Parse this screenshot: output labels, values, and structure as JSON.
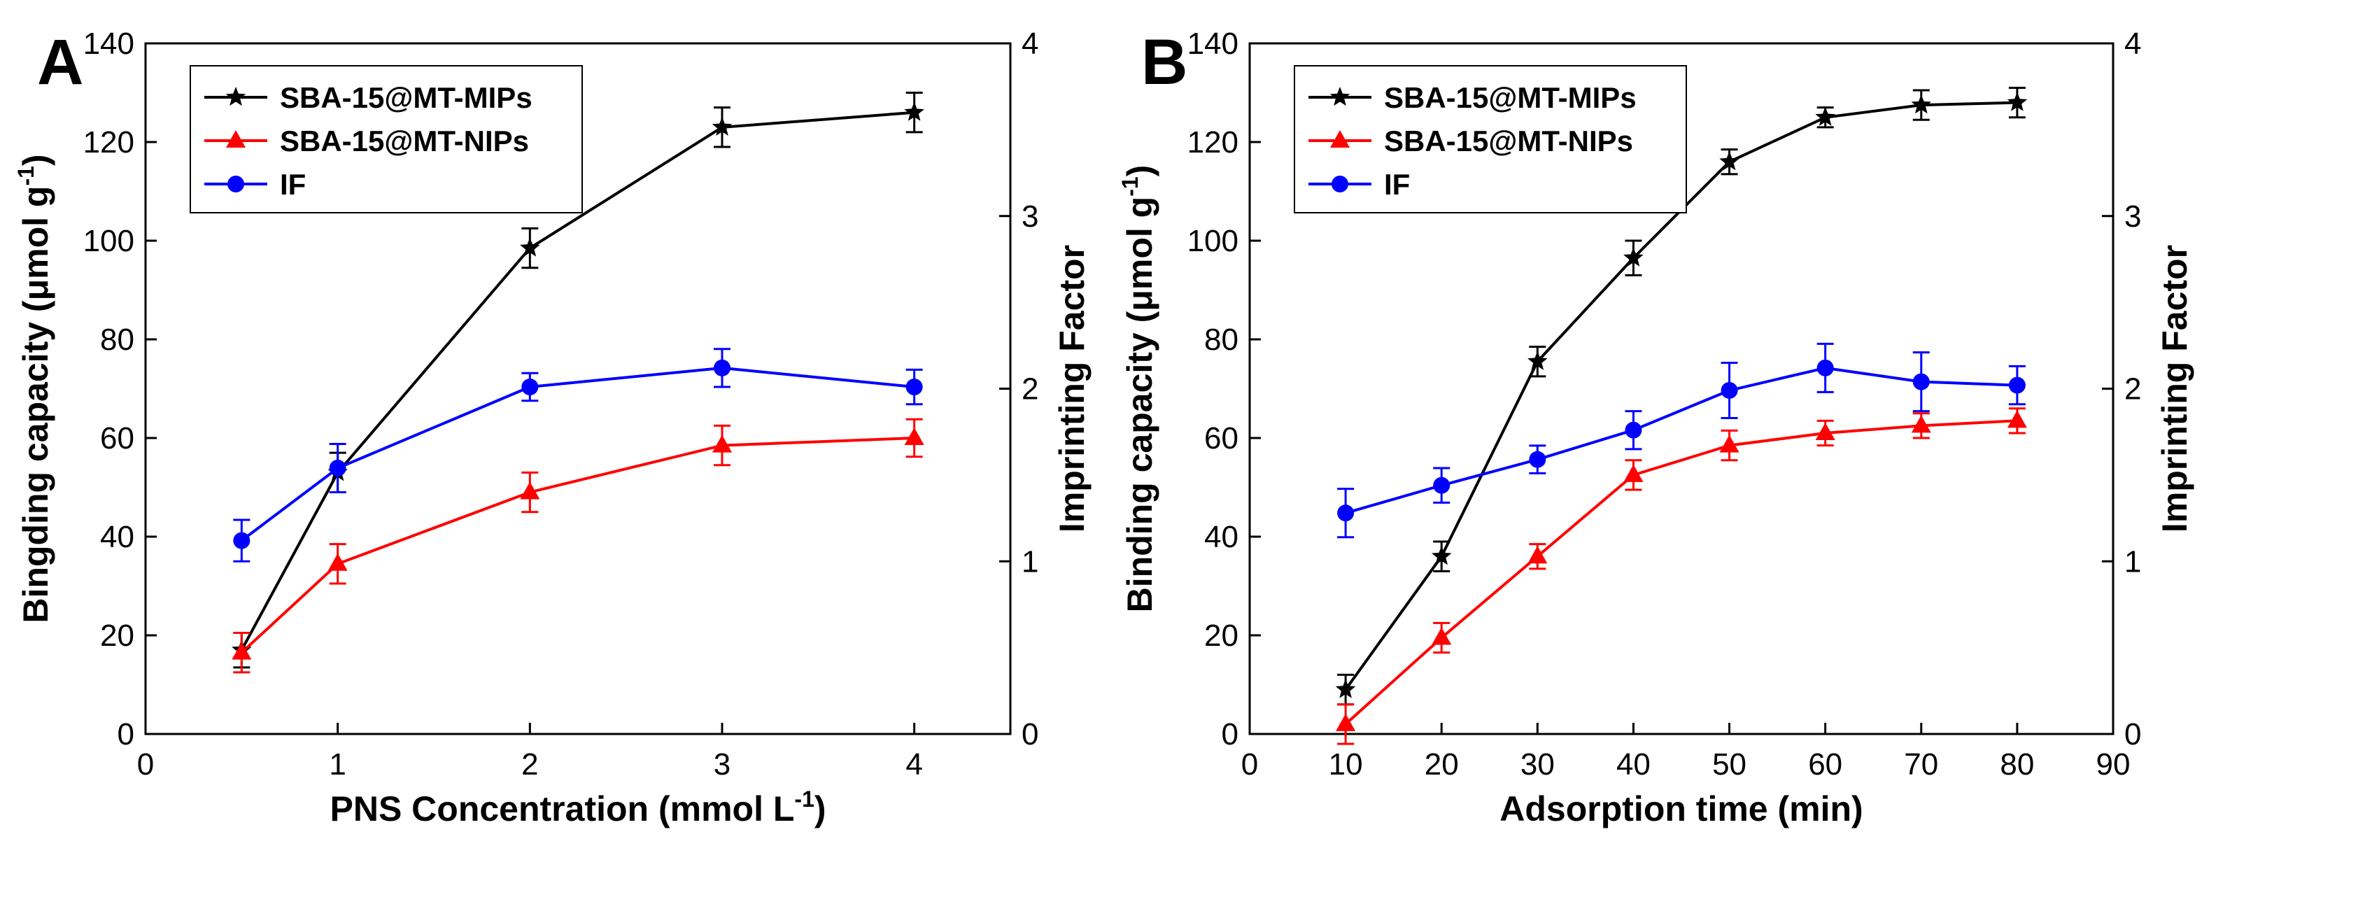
{
  "colors": {
    "mips": "#000000",
    "nips": "#ff0000",
    "if": "#0000ff"
  },
  "chart_data": [
    {
      "type": "line",
      "panel_label": "A",
      "xlabel": "PNS Concentration (mmol L",
      "xlabel_superscript": "-1",
      "xlabel_suffix": ")",
      "ylabel": "Bingding capacity (μmol g",
      "ylabel_superscript": "-1",
      "ylabel_suffix": ")",
      "y2label": "Imprinting Factor",
      "xlim": [
        0,
        4.5
      ],
      "ylim": [
        0,
        140
      ],
      "y2lim": [
        0,
        4
      ],
      "xticks": [
        0,
        1,
        2,
        3,
        4
      ],
      "yticks": [
        0,
        20,
        40,
        60,
        80,
        100,
        120,
        140
      ],
      "y2ticks": [
        0,
        1,
        2,
        3,
        4
      ],
      "legend_position": "top-left",
      "series": [
        {
          "name": "SBA-15@MT-MIPs",
          "axis": "left",
          "marker": "star",
          "color": "#000000",
          "x": [
            0.5,
            1,
            2,
            3,
            4
          ],
          "y": [
            17,
            53,
            98.5,
            123,
            126
          ],
          "err": [
            3.5,
            4,
            4,
            4,
            4
          ]
        },
        {
          "name": "SBA-15@MT-NIPs",
          "axis": "left",
          "marker": "triangle",
          "color": "#ff0000",
          "x": [
            0.5,
            1,
            2,
            3,
            4
          ],
          "y": [
            16.5,
            34.5,
            49,
            58.5,
            60
          ],
          "err": [
            4,
            4,
            4,
            4,
            3.8
          ]
        },
        {
          "name": "IF",
          "axis": "right",
          "marker": "circle",
          "color": "#0000ff",
          "x": [
            0.5,
            1,
            2,
            3,
            4
          ],
          "y": [
            1.12,
            1.54,
            2.01,
            2.12,
            2.01
          ],
          "err": [
            0.12,
            0.14,
            0.08,
            0.11,
            0.1
          ]
        }
      ]
    },
    {
      "type": "line",
      "panel_label": "B",
      "xlabel": "Adsorption time (min)",
      "xlabel_superscript": "",
      "xlabel_suffix": "",
      "ylabel": "Binding capacity (μmol g",
      "ylabel_superscript": "-1",
      "ylabel_suffix": ")",
      "y2label": "Imprinting Factor",
      "xlim": [
        0,
        90
      ],
      "ylim": [
        0,
        140
      ],
      "y2lim": [
        0,
        4
      ],
      "xticks": [
        0,
        10,
        20,
        30,
        40,
        50,
        60,
        70,
        80,
        90
      ],
      "yticks": [
        0,
        20,
        40,
        60,
        80,
        100,
        120,
        140
      ],
      "y2ticks": [
        0,
        1,
        2,
        3,
        4
      ],
      "legend_position": "top-left",
      "series": [
        {
          "name": "SBA-15@MT-MIPs",
          "axis": "left",
          "marker": "star",
          "color": "#000000",
          "x": [
            10,
            20,
            30,
            40,
            50,
            60,
            70,
            80
          ],
          "y": [
            9,
            36,
            75.5,
            96.5,
            116,
            125,
            127.5,
            128
          ],
          "err": [
            3,
            3,
            3,
            3.5,
            2.5,
            2,
            3,
            3
          ]
        },
        {
          "name": "SBA-15@MT-NIPs",
          "axis": "left",
          "marker": "triangle",
          "color": "#ff0000",
          "x": [
            10,
            20,
            30,
            40,
            50,
            60,
            70,
            80
          ],
          "y": [
            2,
            19.5,
            36,
            52.5,
            58.5,
            61,
            62.5,
            63.5
          ],
          "err": [
            4,
            3,
            2.5,
            3,
            3,
            2.5,
            2.5,
            2.5
          ]
        },
        {
          "name": "IF",
          "axis": "right",
          "marker": "circle",
          "color": "#0000ff",
          "x": [
            10,
            20,
            30,
            40,
            50,
            60,
            70,
            80
          ],
          "y": [
            1.28,
            1.44,
            1.59,
            1.76,
            1.99,
            2.12,
            2.04,
            2.02
          ],
          "err": [
            0.14,
            0.1,
            0.08,
            0.11,
            0.16,
            0.14,
            0.17,
            0.11
          ]
        }
      ]
    }
  ]
}
